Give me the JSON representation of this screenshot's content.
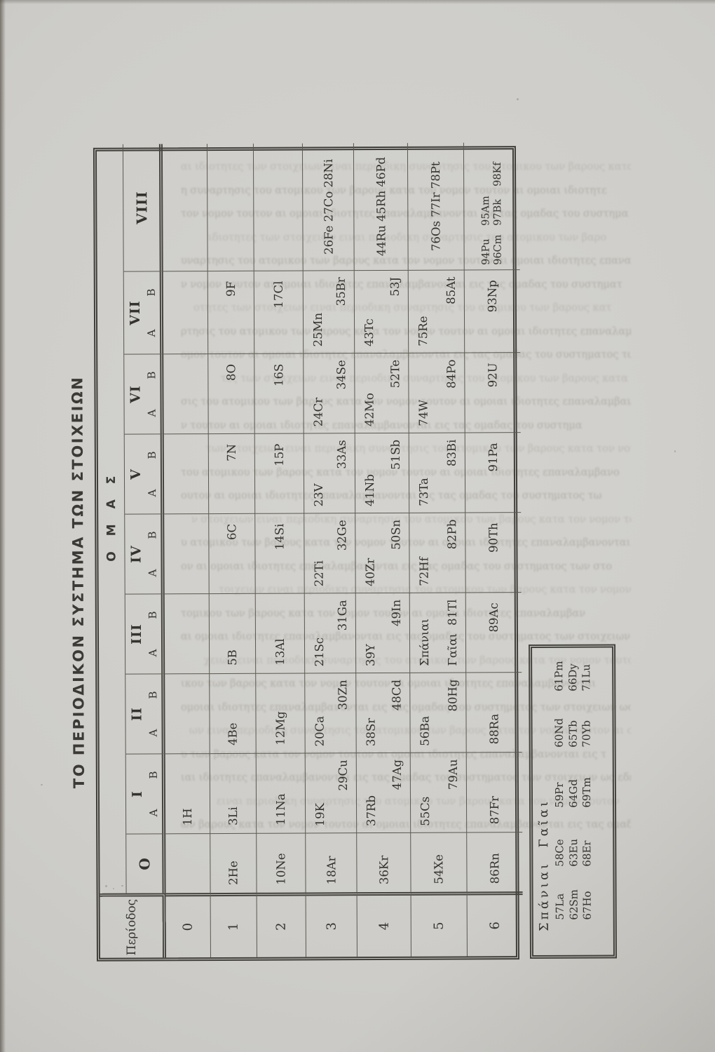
{
  "page_title": "ΤΟ ΠΕΡΙΟΔΙΚΟΝ ΣΥΣΤΗΜΑ ΤΩΝ ΣΤΟΙΧΕΙΩΝ",
  "table": {
    "corner_label": "Περίοδος",
    "group_axis_label": "ΟΜΑΣ",
    "groups": [
      {
        "label": "O"
      },
      {
        "label": "I",
        "sub": [
          "A",
          "B"
        ]
      },
      {
        "label": "II",
        "sub": [
          "A",
          "B"
        ]
      },
      {
        "label": "III",
        "sub": [
          "A",
          "B"
        ]
      },
      {
        "label": "IV",
        "sub": [
          "A",
          "B"
        ]
      },
      {
        "label": "V",
        "sub": [
          "A",
          "B"
        ]
      },
      {
        "label": "VI",
        "sub": [
          "A",
          "B"
        ]
      },
      {
        "label": "VII",
        "sub": [
          "A",
          "B"
        ]
      },
      {
        "label": "VIII"
      }
    ],
    "periods": [
      {
        "num": "0",
        "cells": [
          null,
          {
            "a": "1H"
          },
          null,
          null,
          null,
          null,
          null,
          null,
          null
        ]
      },
      {
        "num": "1",
        "cells": [
          {
            "a": "2He"
          },
          {
            "a": "3Li"
          },
          {
            "a": "4Be"
          },
          {
            "a": "5B"
          },
          {
            "b": "6C"
          },
          {
            "b": "7N"
          },
          {
            "b": "8O"
          },
          {
            "b": "9F"
          },
          null
        ]
      },
      {
        "num": "2",
        "cells": [
          {
            "a": "10Ne"
          },
          {
            "a": "11Na"
          },
          {
            "a": "12Mg"
          },
          {
            "a": "13Al"
          },
          {
            "b": "14Si"
          },
          {
            "b": "15P"
          },
          {
            "b": "16S"
          },
          {
            "b": "17Cl"
          },
          null
        ]
      },
      {
        "num": "3",
        "cells": [
          {
            "a": "18Ar"
          },
          {
            "a": "19K",
            "b": "29Cu"
          },
          {
            "a": "20Ca",
            "b": "30Zn"
          },
          {
            "a": "21Sc",
            "b": "31Ga"
          },
          {
            "a": "22Ti",
            "b": "32Ge"
          },
          {
            "a": "23V",
            "b": "33As"
          },
          {
            "a": "24Cr",
            "b": "34Se"
          },
          {
            "a": "25Mn",
            "b": "35Br"
          },
          {
            "c": "26Fe 27Co 28Ni"
          }
        ]
      },
      {
        "num": "4",
        "cells": [
          {
            "a": "36Kr"
          },
          {
            "a": "37Rb",
            "b": "47Ag"
          },
          {
            "a": "38Sr",
            "b": "48Cd"
          },
          {
            "a": "39Y",
            "b": "49In"
          },
          {
            "a": "40Zr",
            "b": "50Sn"
          },
          {
            "a": "41Nb",
            "b": "51Sb"
          },
          {
            "a": "42Mo",
            "b": "52Te"
          },
          {
            "a": "43Tc",
            "b": "53J"
          },
          {
            "c": "44Ru 45Rh 46Pd"
          }
        ]
      },
      {
        "num": "5",
        "cells": [
          {
            "a": "54Xe"
          },
          {
            "a": "55Cs",
            "b": "79Au"
          },
          {
            "a": "56Ba",
            "b": "80Hg"
          },
          {
            "a": "Σπάνιαι",
            "a2": "Γαῖαι",
            "b": "81Tl"
          },
          {
            "a": "72Hf",
            "b": "82Pb"
          },
          {
            "a": "73Ta",
            "b": "83Bi"
          },
          {
            "a": "74W",
            "b": "84Po"
          },
          {
            "a": "75Re",
            "b": "85At"
          },
          {
            "c": "76Os 77Ir 78Pt"
          }
        ]
      },
      {
        "num": "6",
        "cells": [
          {
            "a": "86Rn"
          },
          {
            "a": "87Fr"
          },
          {
            "a": "88Ra"
          },
          {
            "b": "89Ac"
          },
          {
            "b": "90Th"
          },
          {
            "b": "91Pa"
          },
          {
            "b": "92U"
          },
          {
            "b": "93Np"
          },
          {
            "c2": [
              [
                "94Pu",
                "95Am",
                ""
              ],
              [
                "96Cm",
                "97Bk",
                "98Kf"
              ]
            ]
          }
        ]
      }
    ]
  },
  "rare_earths": {
    "label": "Σπάνιαι Γαῖαι",
    "rows": [
      [
        "57La",
        "58Ce",
        "59Pr",
        "60Nd",
        "61Pm"
      ],
      [
        "62Sm",
        "63Eu",
        "64Gd",
        "65Tb",
        "66Dy"
      ],
      [
        "67Ho",
        "68Er",
        "69Tm",
        "70Yb",
        "71Lu"
      ]
    ]
  },
  "colors": {
    "paper": "#cfcec9",
    "ink": "#34332e",
    "rule_line": "#5a584f",
    "double_rule": "#45433d"
  },
  "decor": {
    "bleed_sample": "αι ιδιοτητες των στοιχειων ειναι περιοδικη συναρτησις του ατομικου των βαρους κατα τον νομον τουτον αι ομοιαι ιδιοτητες επαναλαμβανονται εις τας ομαδας του συστηματος των στοιχειων ως εδειχθη υπο του Μεντελεγεφ"
  }
}
